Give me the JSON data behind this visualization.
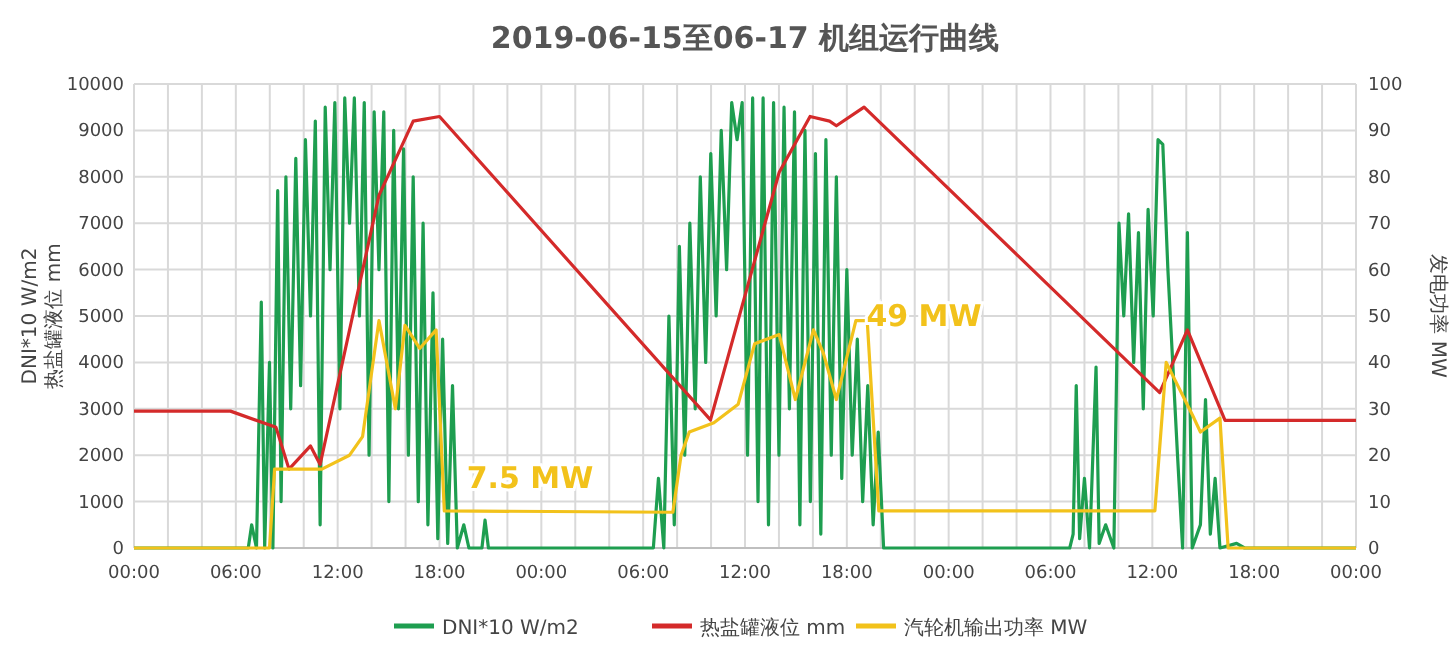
{
  "chart_data": {
    "type": "line",
    "title": "2019-06-15至06-17 机组运行曲线",
    "ylabel": "DNI*10 W/m2\n热盐罐液位 mm",
    "y2label": "发电功率 MW",
    "xlim": [
      "2019-06-15T00:00",
      "2019-06-18T00:00"
    ],
    "xticks": [
      {
        "value": "2019-06-15T00:00",
        "label": "00:00"
      },
      {
        "value": "2019-06-15T02:00",
        "label": null
      },
      {
        "value": "2019-06-15T04:00",
        "label": null
      },
      {
        "value": "2019-06-15T06:00",
        "label": "06:00"
      },
      {
        "value": "2019-06-15T08:00",
        "label": null
      },
      {
        "value": "2019-06-15T10:00",
        "label": null
      },
      {
        "value": "2019-06-15T12:00",
        "label": "12:00"
      },
      {
        "value": "2019-06-15T14:00",
        "label": null
      },
      {
        "value": "2019-06-15T16:00",
        "label": null
      },
      {
        "value": "2019-06-15T18:00",
        "label": "18:00"
      },
      {
        "value": "2019-06-15T20:00",
        "label": null
      },
      {
        "value": "2019-06-15T22:00",
        "label": null
      },
      {
        "value": "2019-06-16T00:00",
        "label": "00:00"
      },
      {
        "value": "2019-06-16T02:00",
        "label": null
      },
      {
        "value": "2019-06-16T04:00",
        "label": null
      },
      {
        "value": "2019-06-16T06:00",
        "label": "06:00"
      },
      {
        "value": "2019-06-16T08:00",
        "label": null
      },
      {
        "value": "2019-06-16T10:00",
        "label": null
      },
      {
        "value": "2019-06-16T12:00",
        "label": "12:00"
      },
      {
        "value": "2019-06-16T14:00",
        "label": null
      },
      {
        "value": "2019-06-16T16:00",
        "label": null
      },
      {
        "value": "2019-06-16T18:00",
        "label": "18:00"
      },
      {
        "value": "2019-06-16T20:00",
        "label": null
      },
      {
        "value": "2019-06-16T22:00",
        "label": null
      },
      {
        "value": "2019-06-17T00:00",
        "label": "00:00"
      },
      {
        "value": "2019-06-17T02:00",
        "label": null
      },
      {
        "value": "2019-06-17T04:00",
        "label": null
      },
      {
        "value": "2019-06-17T06:00",
        "label": "06:00"
      },
      {
        "value": "2019-06-17T08:00",
        "label": null
      },
      {
        "value": "2019-06-17T10:00",
        "label": null
      },
      {
        "value": "2019-06-17T12:00",
        "label": "12:00"
      },
      {
        "value": "2019-06-17T14:00",
        "label": null
      },
      {
        "value": "2019-06-17T16:00",
        "label": null
      },
      {
        "value": "2019-06-17T18:00",
        "label": "18:00"
      },
      {
        "value": "2019-06-17T20:00",
        "label": null
      },
      {
        "value": "2019-06-17T22:00",
        "label": null
      },
      {
        "value": "2019-06-18T00:00",
        "label": "00:00"
      }
    ],
    "ylim": [
      0,
      10000
    ],
    "yticks": [
      0,
      1000,
      2000,
      3000,
      4000,
      5000,
      6000,
      7000,
      8000,
      9000,
      10000
    ],
    "y2lim": [
      0,
      100
    ],
    "y2ticks": [
      0,
      10,
      20,
      30,
      40,
      50,
      60,
      70,
      80,
      90,
      100
    ],
    "grid": true,
    "legend": "bottom",
    "marker": "none",
    "line_style": "solid",
    "annotations": [
      "7.5 MW",
      "49 MW"
    ],
    "series": [
      {
        "name": "DNI*10 W/m2",
        "color": "#1e9e50",
        "x": [
          "2019-06-15T00:00",
          "2019-06-15T06:44",
          "2019-06-15T06:56",
          "2019-06-15T07:13",
          "2019-06-15T07:30",
          "2019-06-15T07:42",
          "2019-06-15T07:59",
          "2019-06-15T08:11",
          "2019-06-15T08:28",
          "2019-06-15T08:40",
          "2019-06-15T08:57",
          "2019-06-15T09:14",
          "2019-06-15T09:32",
          "2019-06-15T09:49",
          "2019-06-15T10:06",
          "2019-06-15T10:24",
          "2019-06-15T10:41",
          "2019-06-15T10:58",
          "2019-06-15T11:16",
          "2019-06-15T11:33",
          "2019-06-15T11:50",
          "2019-06-15T12:08",
          "2019-06-15T12:25",
          "2019-06-15T12:42",
          "2019-06-15T12:59",
          "2019-06-15T13:17",
          "2019-06-15T13:34",
          "2019-06-15T13:51",
          "2019-06-15T14:09",
          "2019-06-15T14:26",
          "2019-06-15T14:43",
          "2019-06-15T15:01",
          "2019-06-15T15:18",
          "2019-06-15T15:35",
          "2019-06-15T15:53",
          "2019-06-15T16:10",
          "2019-06-15T16:27",
          "2019-06-15T16:45",
          "2019-06-15T17:02",
          "2019-06-15T17:19",
          "2019-06-15T17:37",
          "2019-06-15T17:54",
          "2019-06-15T18:11",
          "2019-06-15T18:29",
          "2019-06-15T18:46",
          "2019-06-15T19:03",
          "2019-06-15T19:26",
          "2019-06-15T19:44",
          "2019-06-15T20:30",
          "2019-06-15T20:41",
          "2019-06-15T20:53",
          "2019-06-16T06:36",
          "2019-06-16T06:54",
          "2019-06-16T07:13",
          "2019-06-16T07:31",
          "2019-06-16T07:50",
          "2019-06-16T08:08",
          "2019-06-16T08:27",
          "2019-06-16T08:45",
          "2019-06-16T09:04",
          "2019-06-16T09:22",
          "2019-06-16T09:41",
          "2019-06-16T09:59",
          "2019-06-16T10:18",
          "2019-06-16T10:36",
          "2019-06-16T10:55",
          "2019-06-16T11:13",
          "2019-06-16T11:32",
          "2019-06-16T11:50",
          "2019-06-16T12:09",
          "2019-06-16T12:27",
          "2019-06-16T12:46",
          "2019-06-16T13:04",
          "2019-06-16T13:23",
          "2019-06-16T13:41",
          "2019-06-16T14:00",
          "2019-06-16T14:18",
          "2019-06-16T14:37",
          "2019-06-16T14:55",
          "2019-06-16T15:14",
          "2019-06-16T15:32",
          "2019-06-16T15:51",
          "2019-06-16T16:09",
          "2019-06-16T16:28",
          "2019-06-16T16:46",
          "2019-06-16T17:05",
          "2019-06-16T17:23",
          "2019-06-16T17:42",
          "2019-06-16T18:00",
          "2019-06-16T18:19",
          "2019-06-16T18:37",
          "2019-06-16T18:56",
          "2019-06-16T19:14",
          "2019-06-16T19:33",
          "2019-06-16T19:51",
          "2019-06-16T20:10",
          "2019-06-17T07:08",
          "2019-06-17T07:20",
          "2019-06-17T07:31",
          "2019-06-17T07:43",
          "2019-06-17T08:00",
          "2019-06-17T08:18",
          "2019-06-17T08:41",
          "2019-06-17T08:52",
          "2019-06-17T09:15",
          "2019-06-17T09:44",
          "2019-06-17T10:02",
          "2019-06-17T10:19",
          "2019-06-17T10:36",
          "2019-06-17T10:54",
          "2019-06-17T11:11",
          "2019-06-17T11:28",
          "2019-06-17T11:45",
          "2019-06-17T12:03",
          "2019-06-17T12:20",
          "2019-06-17T12:37",
          "2019-06-17T12:55",
          "2019-06-17T13:12",
          "2019-06-17T13:29",
          "2019-06-17T13:47",
          "2019-06-17T14:04",
          "2019-06-17T14:21",
          "2019-06-17T14:50",
          "2019-06-17T15:08",
          "2019-06-17T15:25",
          "2019-06-17T15:42",
          "2019-06-17T15:59",
          "2019-06-17T16:58",
          "2019-06-17T17:26",
          "2019-06-18T00:00"
        ],
        "values": [
          0,
          0,
          500,
          0,
          5300,
          0,
          4000,
          0,
          7700,
          1000,
          8000,
          3000,
          8400,
          3500,
          8800,
          5000,
          9200,
          500,
          9500,
          6000,
          9600,
          3000,
          9700,
          7000,
          9700,
          5000,
          9600,
          2000,
          9400,
          6000,
          9400,
          1000,
          9000,
          3000,
          8600,
          2000,
          8000,
          1000,
          7000,
          500,
          5500,
          200,
          4500,
          100,
          3500,
          0,
          500,
          0,
          0,
          600,
          0,
          0,
          1500,
          0,
          5000,
          500,
          6500,
          2000,
          7000,
          3000,
          8000,
          4000,
          8500,
          5000,
          9000,
          6000,
          9600,
          8800,
          9600,
          2000,
          9700,
          1000,
          9700,
          500,
          9600,
          2000,
          9500,
          3000,
          9400,
          500,
          9000,
          1000,
          8500,
          300,
          8800,
          2000,
          8000,
          1500,
          6000,
          2000,
          4500,
          1000,
          3500,
          500,
          2500,
          0,
          0,
          300,
          3500,
          200,
          1500,
          0,
          3900,
          100,
          500,
          0,
          7000,
          5000,
          7200,
          4000,
          6800,
          3000,
          7300,
          5000,
          8800,
          8700,
          6000,
          4000,
          2000,
          0,
          6800,
          0,
          500,
          3200,
          300,
          1500,
          0,
          100,
          0,
          0
        ]
      },
      {
        "name": "热盐罐液位 mm",
        "color": "#d42a2a",
        "x": [
          "2019-06-15T00:00",
          "2019-06-15T05:41",
          "2019-06-15T08:22",
          "2019-06-15T09:08",
          "2019-06-15T10:24",
          "2019-06-15T10:58",
          "2019-06-15T14:26",
          "2019-06-15T16:27",
          "2019-06-15T18:00",
          "2019-06-16T09:58",
          "2019-06-16T14:01",
          "2019-06-16T15:50",
          "2019-06-16T16:59",
          "2019-06-16T17:23",
          "2019-06-16T19:01",
          "2019-06-17T12:26",
          "2019-06-17T14:04",
          "2019-06-17T16:17",
          "2019-06-18T00:00"
        ],
        "values": [
          2950,
          2950,
          2600,
          1700,
          2200,
          1800,
          7600,
          9200,
          9300,
          2760,
          8100,
          9300,
          9200,
          9100,
          9500,
          3350,
          4700,
          2750,
          2750
        ]
      },
      {
        "name": "汽轮机输出功率 MW",
        "color": "#f2c21b",
        "axis": "y2",
        "x": [
          "2019-06-15T00:00",
          "2019-06-15T07:59",
          "2019-06-15T08:17",
          "2019-06-15T11:04",
          "2019-06-15T12:42",
          "2019-06-15T13:28",
          "2019-06-15T14:26",
          "2019-06-15T15:24",
          "2019-06-15T15:58",
          "2019-06-15T16:50",
          "2019-06-15T17:48",
          "2019-06-15T18:17",
          "2019-06-16T07:45",
          "2019-06-16T08:14",
          "2019-06-16T08:43",
          "2019-06-16T10:10",
          "2019-06-16T11:36",
          "2019-06-16T12:34",
          "2019-06-16T14:01",
          "2019-06-16T14:58",
          "2019-06-16T16:02",
          "2019-06-16T16:37",
          "2019-06-16T17:23",
          "2019-06-16T18:32",
          "2019-06-16T19:12",
          "2019-06-16T19:53",
          "2019-06-17T12:09",
          "2019-06-17T12:49",
          "2019-06-17T14:27",
          "2019-06-17T14:50",
          "2019-06-17T15:59",
          "2019-06-17T16:28",
          "2019-06-18T00:00"
        ],
        "values": [
          0,
          0,
          17,
          17,
          20,
          24,
          49,
          30,
          48,
          43,
          47,
          8,
          7.7,
          20,
          25,
          27,
          31,
          44,
          46,
          32,
          47,
          42,
          32,
          49,
          49,
          8,
          8,
          40,
          28,
          25,
          28,
          0,
          0
        ]
      }
    ]
  }
}
